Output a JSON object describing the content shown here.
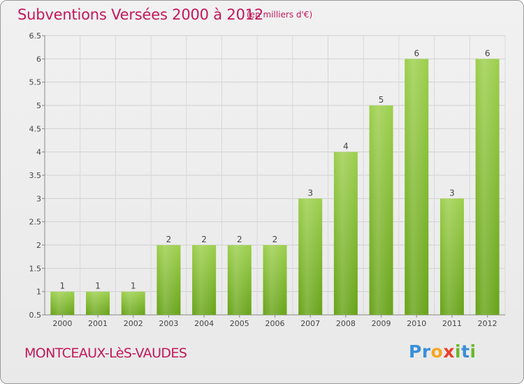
{
  "title": "Subventions Versées 2000 à 2012",
  "subtitle": "(en milliers d'€)",
  "location": "MONTCEAUX-LèS-VAUDES",
  "logo_text": "Proxiti",
  "colors": {
    "accent": "#c2185b",
    "bar_light": "#9ccf4c",
    "bar_dark": "#69a51a",
    "grid": "#cccccc"
  },
  "chart_data": {
    "type": "bar",
    "categories": [
      "2000",
      "2001",
      "2002",
      "2003",
      "2004",
      "2005",
      "2006",
      "2007",
      "2008",
      "2009",
      "2010",
      "2011",
      "2012"
    ],
    "values": [
      1,
      1,
      1,
      2,
      2,
      2,
      2,
      3,
      4,
      5,
      6,
      3,
      6
    ],
    "data_labels": [
      "1",
      "1",
      "1",
      "2",
      "2",
      "2",
      "2",
      "3",
      "4",
      "5",
      "6",
      "3",
      "6"
    ],
    "title": "Subventions Versées 2000 à 2012",
    "subtitle": "(en milliers d'€)",
    "xlabel": "",
    "ylabel": "",
    "ylim": [
      0.5,
      6.5
    ],
    "yticks": [
      "0.5",
      "1",
      "1.5",
      "2",
      "2.5",
      "3",
      "3.5",
      "4",
      "4.5",
      "5",
      "5.5",
      "6",
      "6.5"
    ],
    "grid": true,
    "legend": "none"
  }
}
